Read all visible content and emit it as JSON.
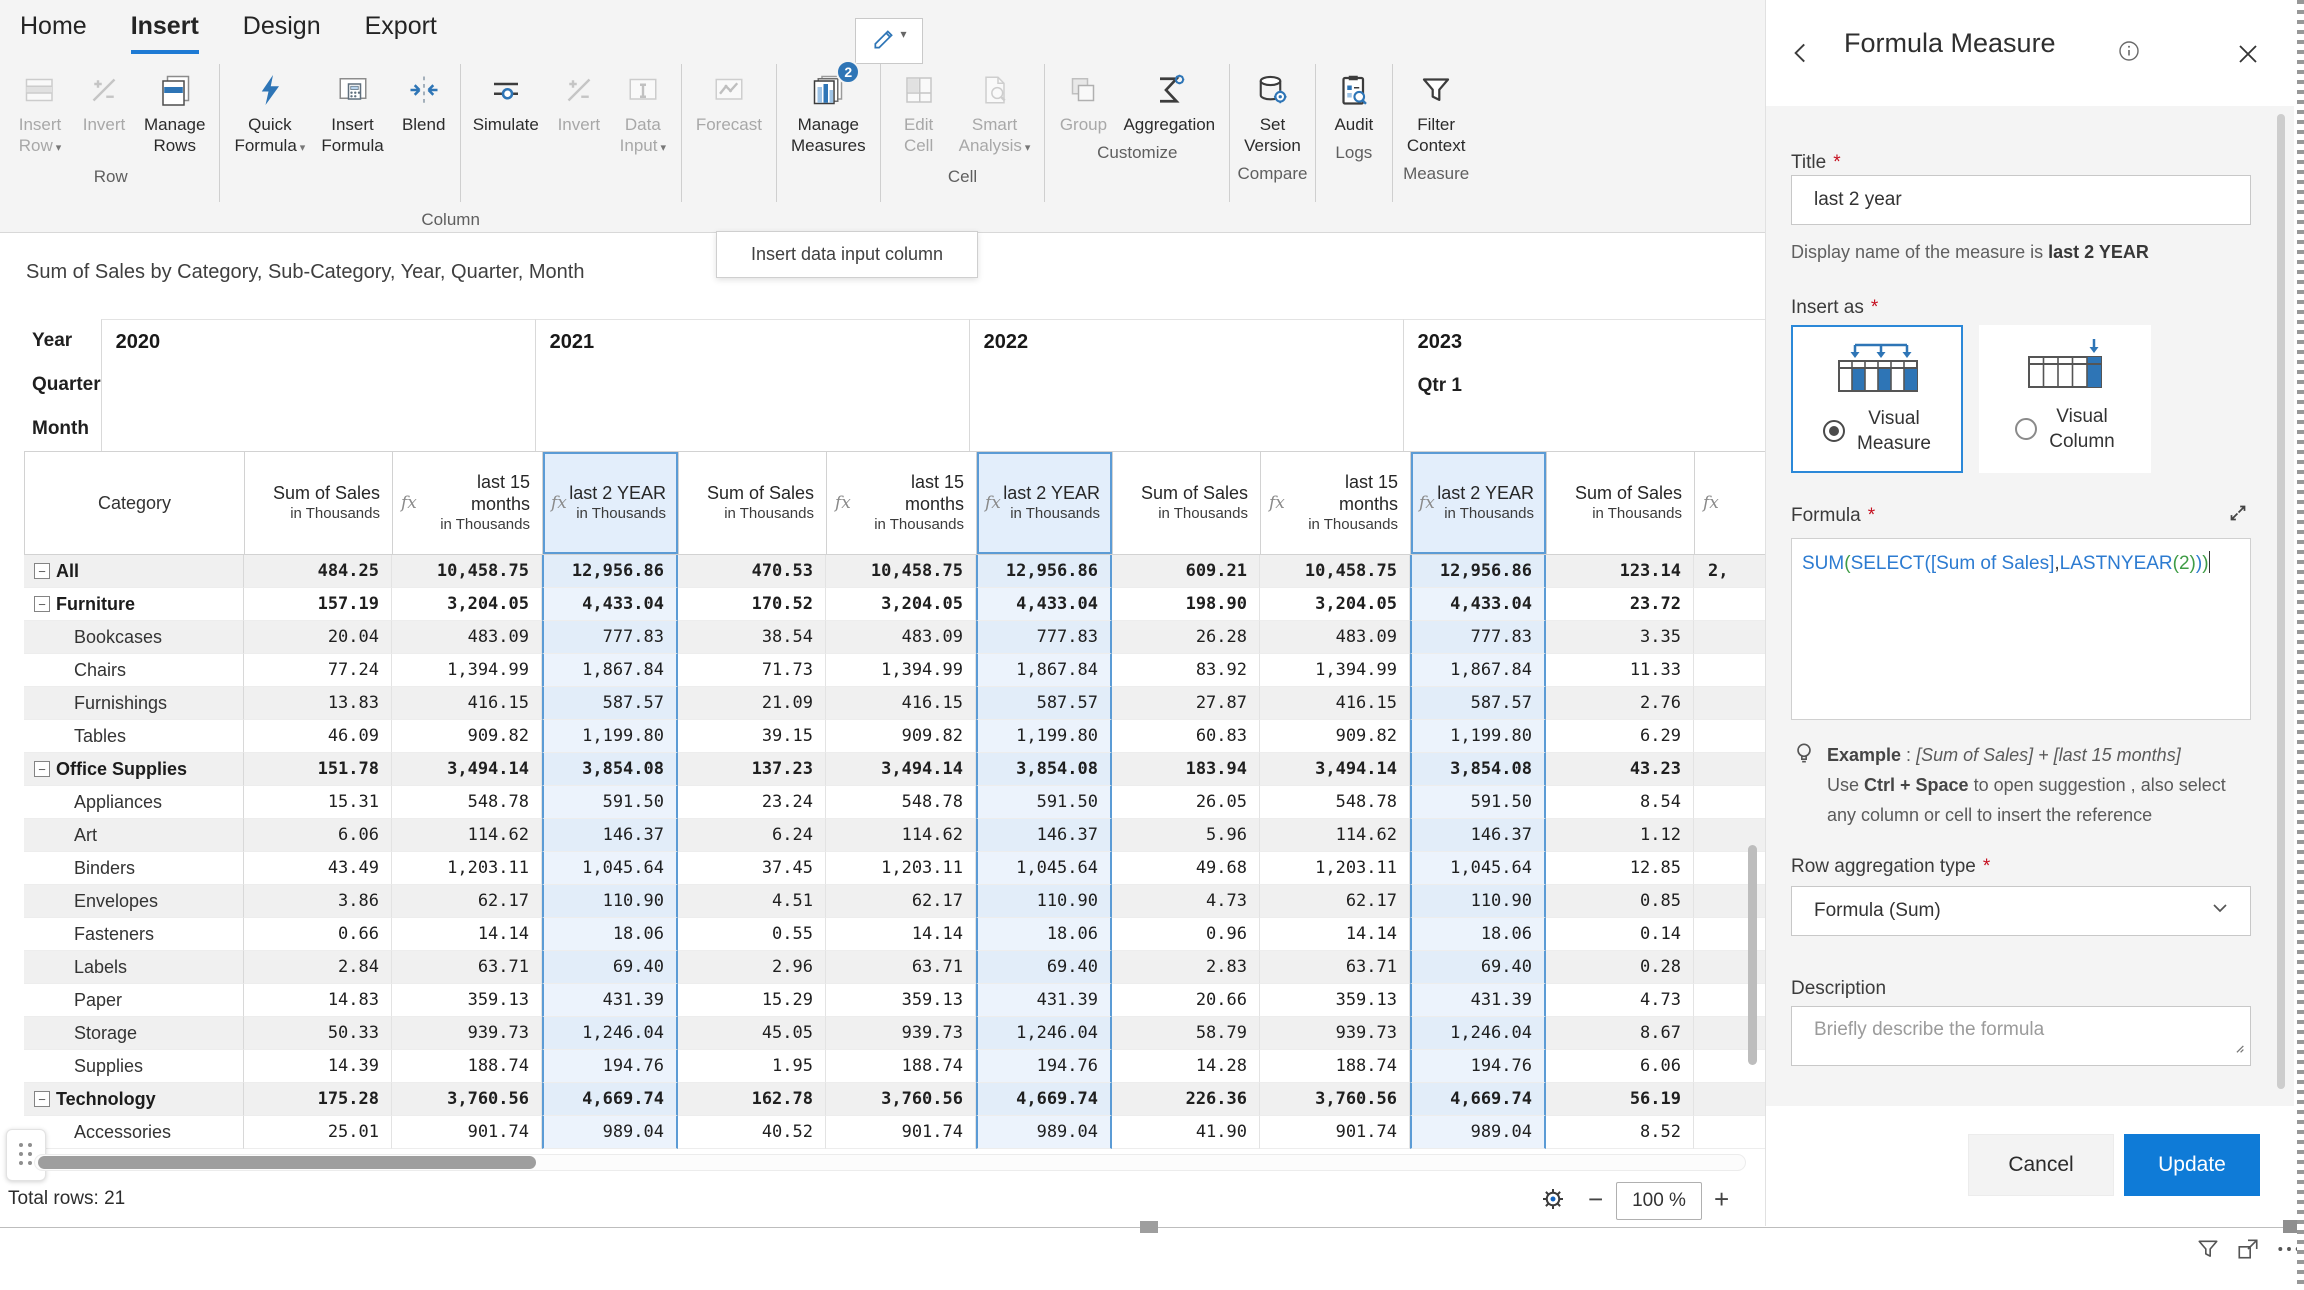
{
  "ribbon": {
    "tabs": [
      {
        "label": "Home",
        "active": false
      },
      {
        "label": "Insert",
        "active": true
      },
      {
        "label": "Design",
        "active": false
      },
      {
        "label": "Export",
        "active": false
      }
    ],
    "tooltip": "Insert data input column",
    "groups": [
      {
        "label": "Row",
        "buttons": [
          {
            "label": "Insert\nRow",
            "caret": true,
            "icon": "insert-row",
            "disabled": true
          },
          {
            "label": "Invert",
            "icon": "invert",
            "disabled": true
          },
          {
            "label": "Manage\nRows",
            "icon": "manage-rows",
            "disabled": false
          }
        ]
      },
      {
        "label": "Column",
        "buttons": [
          {
            "label": "Quick\nFormula",
            "caret": true,
            "icon": "quick-formula",
            "disabled": false
          },
          {
            "label": "Insert\nFormula",
            "icon": "insert-formula",
            "disabled": false
          },
          {
            "label": "Blend",
            "icon": "blend",
            "disabled": false
          },
          {
            "divider": true
          },
          {
            "label": "Simulate",
            "icon": "simulate",
            "disabled": false
          },
          {
            "label": "Invert",
            "icon": "invert",
            "disabled": true
          },
          {
            "label": "Data\nInput",
            "caret": true,
            "icon": "data-input",
            "disabled": true
          }
        ]
      },
      {
        "label": "",
        "buttons": [
          {
            "label": "Forecast",
            "icon": "forecast",
            "disabled": true
          }
        ]
      },
      {
        "label": "",
        "buttons": [
          {
            "label": "Manage\nMeasures",
            "icon": "manage-measures",
            "badge": "2",
            "disabled": false
          }
        ]
      },
      {
        "label": "Cell",
        "buttons": [
          {
            "label": "Edit\nCell",
            "icon": "edit-cell",
            "disabled": true
          },
          {
            "label": "Smart\nAnalysis",
            "caret": true,
            "icon": "smart-analysis",
            "disabled": true
          }
        ]
      },
      {
        "label": "Customize",
        "buttons": [
          {
            "label": "Group",
            "icon": "group",
            "disabled": true
          },
          {
            "label": "Aggregation",
            "icon": "aggregation",
            "disabled": false
          }
        ]
      },
      {
        "label": "Compare",
        "buttons": [
          {
            "label": "Set\nVersion",
            "icon": "set-version",
            "disabled": false
          }
        ]
      },
      {
        "label": "Logs",
        "buttons": [
          {
            "label": "Audit",
            "icon": "audit",
            "disabled": false
          }
        ]
      },
      {
        "label": "Measure",
        "buttons": [
          {
            "label": "Filter\nContext",
            "icon": "filter-context",
            "disabled": false
          }
        ]
      }
    ]
  },
  "table": {
    "title": "Sum of Sales by Category, Sub-Category, Year, Quarter, Month",
    "band_labels": [
      "Year",
      "Quarter",
      "Month"
    ],
    "years": [
      {
        "label": "2020",
        "quarter": ""
      },
      {
        "label": "2021",
        "quarter": ""
      },
      {
        "label": "2022",
        "quarter": ""
      },
      {
        "label": "2023",
        "quarter": "Qtr 1"
      }
    ],
    "col_headers": {
      "category": "Category",
      "measures": [
        {
          "line1": "Sum of Sales",
          "line2": "in Thousands",
          "fx": false,
          "highlight": false
        },
        {
          "line1": "last 15 months",
          "line2": "in Thousands",
          "fx": true,
          "highlight": false
        },
        {
          "line1": "last 2 YEAR",
          "line2": "in Thousands",
          "fx": true,
          "highlight": true
        }
      ],
      "partial": {
        "line1": "",
        "line2": "in Th",
        "fx": true
      }
    },
    "rows": [
      {
        "name": "All",
        "parent": true,
        "v": [
          "484.25",
          "10,458.75",
          "12,956.86",
          "470.53",
          "10,458.75",
          "12,956.86",
          "609.21",
          "10,458.75",
          "12,956.86",
          "123.14",
          "2,"
        ]
      },
      {
        "name": "Furniture",
        "parent": true,
        "v": [
          "157.19",
          "3,204.05",
          "4,433.04",
          "170.52",
          "3,204.05",
          "4,433.04",
          "198.90",
          "3,204.05",
          "4,433.04",
          "23.72",
          ""
        ]
      },
      {
        "name": "Bookcases",
        "parent": false,
        "v": [
          "20.04",
          "483.09",
          "777.83",
          "38.54",
          "483.09",
          "777.83",
          "26.28",
          "483.09",
          "777.83",
          "3.35",
          ""
        ]
      },
      {
        "name": "Chairs",
        "parent": false,
        "v": [
          "77.24",
          "1,394.99",
          "1,867.84",
          "71.73",
          "1,394.99",
          "1,867.84",
          "83.92",
          "1,394.99",
          "1,867.84",
          "11.33",
          ""
        ]
      },
      {
        "name": "Furnishings",
        "parent": false,
        "v": [
          "13.83",
          "416.15",
          "587.57",
          "21.09",
          "416.15",
          "587.57",
          "27.87",
          "416.15",
          "587.57",
          "2.76",
          ""
        ]
      },
      {
        "name": "Tables",
        "parent": false,
        "v": [
          "46.09",
          "909.82",
          "1,199.80",
          "39.15",
          "909.82",
          "1,199.80",
          "60.83",
          "909.82",
          "1,199.80",
          "6.29",
          ""
        ]
      },
      {
        "name": "Office Supplies",
        "parent": true,
        "v": [
          "151.78",
          "3,494.14",
          "3,854.08",
          "137.23",
          "3,494.14",
          "3,854.08",
          "183.94",
          "3,494.14",
          "3,854.08",
          "43.23",
          ""
        ]
      },
      {
        "name": "Appliances",
        "parent": false,
        "v": [
          "15.31",
          "548.78",
          "591.50",
          "23.24",
          "548.78",
          "591.50",
          "26.05",
          "548.78",
          "591.50",
          "8.54",
          ""
        ]
      },
      {
        "name": "Art",
        "parent": false,
        "v": [
          "6.06",
          "114.62",
          "146.37",
          "6.24",
          "114.62",
          "146.37",
          "5.96",
          "114.62",
          "146.37",
          "1.12",
          ""
        ]
      },
      {
        "name": "Binders",
        "parent": false,
        "v": [
          "43.49",
          "1,203.11",
          "1,045.64",
          "37.45",
          "1,203.11",
          "1,045.64",
          "49.68",
          "1,203.11",
          "1,045.64",
          "12.85",
          ""
        ]
      },
      {
        "name": "Envelopes",
        "parent": false,
        "v": [
          "3.86",
          "62.17",
          "110.90",
          "4.51",
          "62.17",
          "110.90",
          "4.73",
          "62.17",
          "110.90",
          "0.85",
          ""
        ]
      },
      {
        "name": "Fasteners",
        "parent": false,
        "v": [
          "0.66",
          "14.14",
          "18.06",
          "0.55",
          "14.14",
          "18.06",
          "0.96",
          "14.14",
          "18.06",
          "0.14",
          ""
        ]
      },
      {
        "name": "Labels",
        "parent": false,
        "v": [
          "2.84",
          "63.71",
          "69.40",
          "2.96",
          "63.71",
          "69.40",
          "2.83",
          "63.71",
          "69.40",
          "0.28",
          ""
        ]
      },
      {
        "name": "Paper",
        "parent": false,
        "v": [
          "14.83",
          "359.13",
          "431.39",
          "15.29",
          "359.13",
          "431.39",
          "20.66",
          "359.13",
          "431.39",
          "4.73",
          ""
        ]
      },
      {
        "name": "Storage",
        "parent": false,
        "v": [
          "50.33",
          "939.73",
          "1,246.04",
          "45.05",
          "939.73",
          "1,246.04",
          "58.79",
          "939.73",
          "1,246.04",
          "8.67",
          ""
        ]
      },
      {
        "name": "Supplies",
        "parent": false,
        "v": [
          "14.39",
          "188.74",
          "194.76",
          "1.95",
          "188.74",
          "194.76",
          "14.28",
          "188.74",
          "194.76",
          "6.06",
          ""
        ]
      },
      {
        "name": "Technology",
        "parent": true,
        "v": [
          "175.28",
          "3,760.56",
          "4,669.74",
          "162.78",
          "3,760.56",
          "4,669.74",
          "226.36",
          "3,760.56",
          "4,669.74",
          "56.19",
          ""
        ]
      },
      {
        "name": "Accessories",
        "parent": false,
        "v": [
          "25.01",
          "901.74",
          "989.04",
          "40.52",
          "901.74",
          "989.04",
          "41.90",
          "901.74",
          "989.04",
          "8.52",
          ""
        ]
      }
    ]
  },
  "status": {
    "total_rows": "Total rows: 21",
    "zoom_value": "100 %",
    "minus": "−",
    "plus": "+"
  },
  "panel": {
    "title": "Formula Measure",
    "required_marker": "*",
    "title_label": "Title",
    "title_value": "last 2 year",
    "helper_prefix": "Display name of the measure is ",
    "helper_bold": "last 2 YEAR",
    "insert_as_label": "Insert as",
    "options": [
      {
        "label": "Visual Measure",
        "selected": true
      },
      {
        "label": "Visual Column",
        "selected": false
      }
    ],
    "formula_label": "Formula",
    "formula_tokens": [
      {
        "t": "SUM",
        "c": "b"
      },
      {
        "t": "(",
        "c": "g"
      },
      {
        "t": "SELECT",
        "c": "b"
      },
      {
        "t": "(",
        "c": "b"
      },
      {
        "t": "[Sum of Sales]",
        "c": "b"
      },
      {
        "t": ",",
        "c": "d"
      },
      {
        "t": "LASTNYEAR",
        "c": "b"
      },
      {
        "t": "(",
        "c": "g"
      },
      {
        "t": "2",
        "c": "g"
      },
      {
        "t": ")",
        "c": "g"
      },
      {
        "t": ")",
        "c": "b"
      },
      {
        "t": ")",
        "c": "g"
      }
    ],
    "example_label": "Example",
    "example_sep": " :  ",
    "example_code": "[Sum of Sales] + [last 15 months]",
    "hint_pre": "Use ",
    "hint_bold": "Ctrl + Space",
    "hint_post": " to open suggestion , also select",
    "hint_line2": "any column or cell to insert the reference",
    "row_agg_label": "Row aggregation type",
    "row_agg_value": "Formula (Sum)",
    "desc_label": "Description",
    "desc_placeholder": "Briefly describe the formula",
    "cancel": "Cancel",
    "update": "Update"
  },
  "colors": {
    "accent": "#1e7ad4",
    "icon_blue": "#2e75b6",
    "update_button": "#0f7bd7",
    "highlight_column_bg": "#ecf3fc",
    "highlight_column_border": "#5b9bd5"
  }
}
